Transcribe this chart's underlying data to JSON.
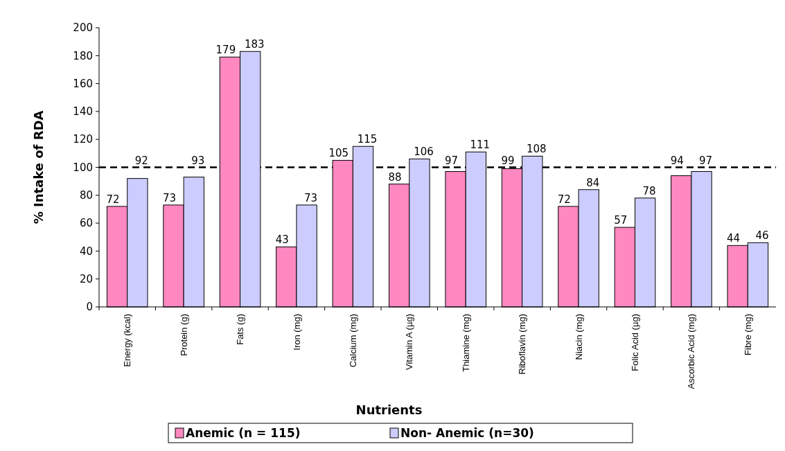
{
  "chart_data": {
    "type": "bar",
    "xlabel": "Nutrients",
    "ylabel": "% Intake of RDA",
    "categories": [
      "Energy (kcal)",
      "Protein (g)",
      "Fats (g)",
      "Iron (mg)",
      "Calcium (mg)",
      "Vitamin A (µg)",
      "Thiamine (mg)",
      "Riboflavin (mg)",
      "Niacin (mg)",
      "Folic Acid (µg)",
      "Ascorbic Acid  (mg)",
      "Fibre (mg)"
    ],
    "series": [
      {
        "name": "Anemic (n = 115)",
        "color": "#ff88c0",
        "values": [
          72,
          73,
          179,
          43,
          105,
          88,
          97,
          99,
          72,
          57,
          94,
          44
        ]
      },
      {
        "name": "Non- Anemic (n=30)",
        "color": "#ccccff",
        "values": [
          92,
          93,
          183,
          73,
          115,
          106,
          111,
          108,
          84,
          78,
          97,
          46
        ]
      }
    ],
    "ylim": [
      0,
      200
    ],
    "yticks": [
      0,
      20,
      40,
      60,
      80,
      100,
      120,
      140,
      160,
      180,
      200
    ],
    "ref_lines": [
      {
        "axis": "y",
        "value": 100,
        "line_style": "dashed",
        "color": "#000000"
      }
    ],
    "data_labels": true,
    "legend": "bottom",
    "grid": false
  }
}
